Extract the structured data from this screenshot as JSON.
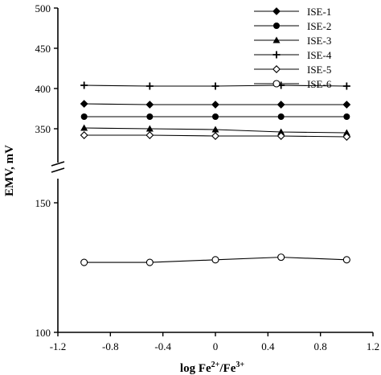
{
  "chart_data": {
    "type": "line",
    "xlabel": "log Fe",
    "xlabel_sup1": "2+",
    "xlabel_mid": "/Fe",
    "xlabel_sup2": "3+",
    "ylabel": "EMV, mV",
    "xlim": [
      -1.2,
      1.2
    ],
    "xticks": [
      -1.2,
      -0.8,
      -0.4,
      0,
      0.4,
      0.8,
      1.2
    ],
    "xtick_labels": [
      "-1.2",
      "-0.8",
      "-0.4",
      "0",
      "0.4",
      "0.8",
      "1.2"
    ],
    "y_axis_break": true,
    "y_upper_segment": {
      "range": [
        340,
        500
      ],
      "ticks": [
        350,
        400,
        450,
        500
      ]
    },
    "y_lower_segment": {
      "range": [
        100,
        160
      ],
      "ticks": [
        100,
        150
      ]
    },
    "grid": false,
    "legend_position": "top-right",
    "x": [
      -1,
      -0.5,
      0,
      0.5,
      1
    ],
    "series": [
      {
        "name": "ISE-1",
        "marker": "diamond-filled",
        "values": [
          381,
          380,
          380,
          380,
          380
        ]
      },
      {
        "name": "ISE-2",
        "marker": "circle-filled",
        "values": [
          365,
          365,
          365,
          365,
          365
        ]
      },
      {
        "name": "ISE-3",
        "marker": "triangle-filled",
        "values": [
          351,
          350,
          349,
          346,
          345
        ]
      },
      {
        "name": "ISE-4",
        "marker": "plus",
        "values": [
          404,
          403,
          403,
          404,
          403
        ]
      },
      {
        "name": "ISE-5",
        "marker": "diamond-open",
        "values": [
          342,
          342,
          341,
          341,
          340
        ]
      },
      {
        "name": "ISE-6",
        "marker": "circle-open",
        "values": [
          127,
          127,
          128,
          129,
          128
        ]
      }
    ]
  }
}
